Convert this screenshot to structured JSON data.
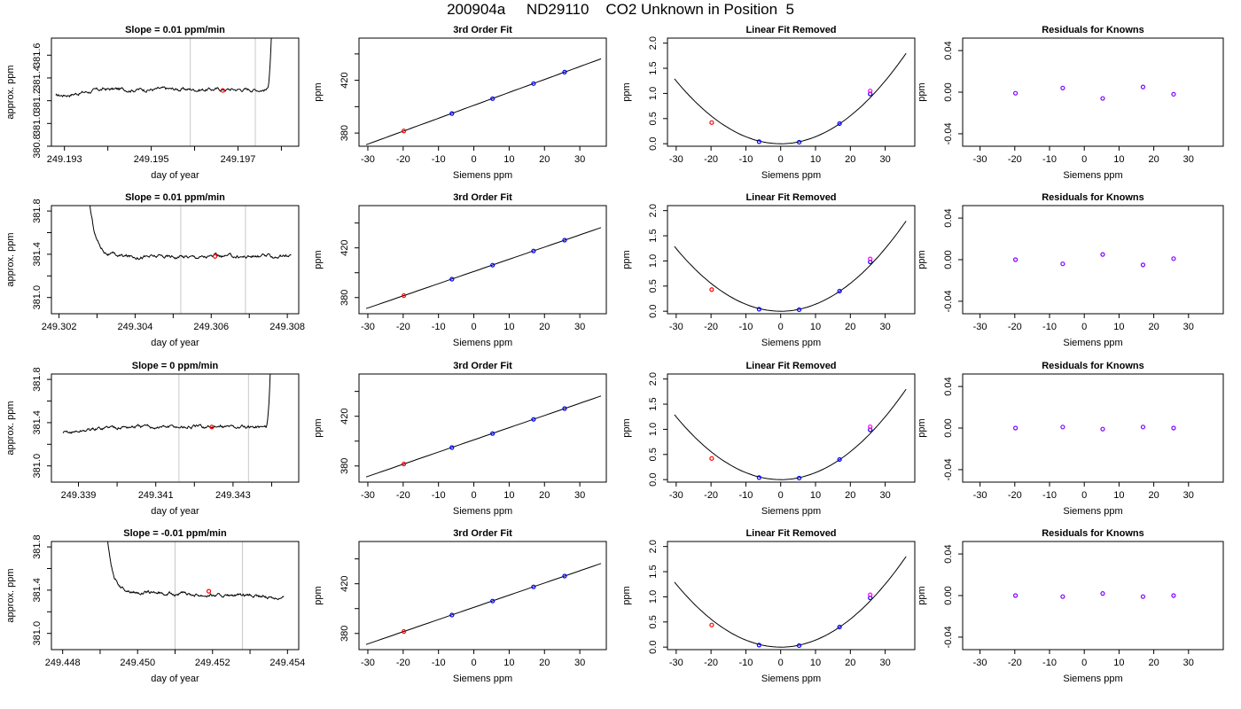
{
  "main_title": "200904a     ND29110    CO2 Unknown in Position  5",
  "chart_data": [
    {
      "id": "r1c1",
      "type": "line",
      "title": "Slope =  0.01  ppm/min",
      "xlabel": "day of year",
      "ylabel": "approx. ppm",
      "xlim": [
        249.1927,
        249.1984
      ],
      "ylim": [
        380.8,
        381.75
      ],
      "xticks": [
        249.193,
        249.194,
        249.195,
        249.196,
        249.197,
        249.198
      ],
      "xticklabels": [
        "249.193",
        "",
        "249.195",
        "",
        "249.197",
        ""
      ],
      "yticks": [
        380.8,
        381.0,
        381.2,
        381.4,
        381.6
      ],
      "yticklabels": [
        "380.8",
        "381.0",
        "381.2",
        "381.4",
        "381.6"
      ],
      "vlines": [
        249.1959,
        249.1974
      ],
      "trace_start": 249.1928,
      "trace_end": 249.1979,
      "base": 381.3,
      "initial": 381.24,
      "noise": 0.014,
      "rise": "end",
      "marker": [
        249.19665,
        381.29
      ]
    },
    {
      "id": "r1c2",
      "type": "scatter",
      "title": "3rd Order Fit",
      "xlabel": "Siemens ppm",
      "ylabel": "ppm",
      "xlim": [
        -32.5,
        37.5
      ],
      "ylim": [
        370,
        452
      ],
      "xticks": [
        -30,
        -20,
        -10,
        0,
        10,
        20,
        30
      ],
      "xticklabels": [
        "-30",
        "-20",
        "-10",
        "0",
        "10",
        "20",
        "30"
      ],
      "yticks": [
        380,
        400,
        420,
        440
      ],
      "yticklabels": [
        "380",
        "",
        "420",
        ""
      ],
      "fit": "cubic",
      "fit_range": [
        -30.5,
        36
      ],
      "points": [
        {
          "x": -19.8,
          "y": 381.6,
          "color": "#ff0000"
        },
        {
          "x": -6.2,
          "y": 394.8,
          "color": "#0000ff"
        },
        {
          "x": 5.3,
          "y": 406.1,
          "color": "#0000ff"
        },
        {
          "x": 16.9,
          "y": 417.5,
          "color": "#0000ff"
        },
        {
          "x": 25.7,
          "y": 426.2,
          "color": "#0000ff"
        }
      ]
    },
    {
      "id": "r1c3",
      "type": "scatter",
      "title": "Linear Fit Removed",
      "xlabel": "Siemens ppm",
      "ylabel": "ppm",
      "xlim": [
        -32.5,
        38.5
      ],
      "ylim": [
        -0.05,
        2.1
      ],
      "xticks": [
        -30,
        -20,
        -10,
        0,
        10,
        20,
        30
      ],
      "xticklabels": [
        "-30",
        "-20",
        "-10",
        "0",
        "10",
        "20",
        "30"
      ],
      "yticks": [
        0,
        0.5,
        1.0,
        1.5,
        2.0
      ],
      "yticklabels": [
        "0.0",
        "0.5",
        "1.0",
        "1.5",
        "2.0"
      ],
      "fit": "parabola",
      "fit_range": [
        -30.5,
        36
      ],
      "points": [
        {
          "x": -19.8,
          "y": 0.42,
          "color": "#ff0000"
        },
        {
          "x": -6.2,
          "y": 0.04,
          "color": "#0000ff"
        },
        {
          "x": 5.3,
          "y": 0.03,
          "color": "#0000ff"
        },
        {
          "x": 16.9,
          "y": 0.4,
          "color": "#0000ff"
        },
        {
          "x": 25.7,
          "y": 0.99,
          "color": "#0000ff"
        },
        {
          "x": 25.7,
          "y": 1.05,
          "color": "#ff00ff"
        }
      ]
    },
    {
      "id": "r1c4",
      "type": "scatter",
      "title": "Residuals for Knowns",
      "xlabel": "Siemens ppm",
      "ylabel": "ppm",
      "xlim": [
        -35,
        40
      ],
      "ylim": [
        -0.052,
        0.052
      ],
      "xticks": [
        -30,
        -20,
        -10,
        0,
        10,
        20,
        30
      ],
      "xticklabels": [
        "-30",
        "-20",
        "-10",
        "0",
        "10",
        "20",
        "30"
      ],
      "yticks": [
        -0.04,
        0,
        0.04
      ],
      "yticklabels": [
        "-0.04",
        "0.00",
        "0.04"
      ],
      "points": [
        {
          "x": -19.8,
          "y": -0.001,
          "color": "#8000ff"
        },
        {
          "x": -6.2,
          "y": 0.004,
          "color": "#8000ff"
        },
        {
          "x": 5.3,
          "y": -0.006,
          "color": "#8000ff"
        },
        {
          "x": 16.9,
          "y": 0.005,
          "color": "#8000ff"
        },
        {
          "x": 25.7,
          "y": -0.002,
          "color": "#8000ff"
        }
      ]
    },
    {
      "id": "r2c1",
      "type": "line",
      "title": "Slope =  0.01  ppm/min",
      "xlabel": "day of year",
      "ylabel": "approx. ppm",
      "xlim": [
        249.3018,
        249.3083
      ],
      "ylim": [
        380.85,
        381.85
      ],
      "xticks": [
        249.302,
        249.303,
        249.304,
        249.305,
        249.306,
        249.307,
        249.308
      ],
      "xticklabels": [
        "249.302",
        "",
        "249.304",
        "",
        "249.306",
        "",
        "249.308"
      ],
      "yticks": [
        381.0,
        381.2,
        381.4,
        381.6,
        381.8
      ],
      "yticklabels": [
        "381.0",
        "",
        "381.4",
        "",
        "381.8"
      ],
      "vlines": [
        249.3052,
        249.3069
      ],
      "trace_start": 249.3027,
      "trace_end": 249.3081,
      "base": 381.38,
      "noise": 0.014,
      "rise": "start",
      "marker": [
        249.3061,
        381.38
      ]
    },
    {
      "id": "r2c2",
      "type": "scatter",
      "title": "3rd Order Fit",
      "xlabel": "Siemens ppm",
      "ylabel": "ppm",
      "xlim": [
        -32.5,
        37.5
      ],
      "ylim": [
        367,
        454
      ],
      "xticks": [
        -30,
        -20,
        -10,
        0,
        10,
        20,
        30
      ],
      "xticklabels": [
        "-30",
        "-20",
        "-10",
        "0",
        "10",
        "20",
        "30"
      ],
      "yticks": [
        380,
        400,
        420,
        440
      ],
      "yticklabels": [
        "380",
        "",
        "420",
        ""
      ],
      "fit": "cubic",
      "fit_range": [
        -30.5,
        36
      ],
      "points": [
        {
          "x": -19.8,
          "y": 381.6,
          "color": "#ff0000"
        },
        {
          "x": -6.2,
          "y": 394.8,
          "color": "#0000ff"
        },
        {
          "x": 5.3,
          "y": 406.1,
          "color": "#0000ff"
        },
        {
          "x": 16.9,
          "y": 417.5,
          "color": "#0000ff"
        },
        {
          "x": 25.7,
          "y": 426.2,
          "color": "#0000ff"
        }
      ]
    },
    {
      "id": "r2c3",
      "type": "scatter",
      "title": "Linear Fit Removed",
      "xlabel": "Siemens ppm",
      "ylabel": "ppm",
      "xlim": [
        -32.5,
        38.5
      ],
      "ylim": [
        -0.05,
        2.1
      ],
      "xticks": [
        -30,
        -20,
        -10,
        0,
        10,
        20,
        30
      ],
      "xticklabels": [
        "-30",
        "-20",
        "-10",
        "0",
        "10",
        "20",
        "30"
      ],
      "yticks": [
        0,
        0.5,
        1.0,
        1.5,
        2.0
      ],
      "yticklabels": [
        "0.0",
        "0.5",
        "1.0",
        "1.5",
        "2.0"
      ],
      "fit": "parabola",
      "fit_range": [
        -30.5,
        36
      ],
      "points": [
        {
          "x": -19.8,
          "y": 0.43,
          "color": "#ff0000"
        },
        {
          "x": -6.2,
          "y": 0.04,
          "color": "#0000ff"
        },
        {
          "x": 5.3,
          "y": 0.03,
          "color": "#0000ff"
        },
        {
          "x": 16.9,
          "y": 0.4,
          "color": "#0000ff"
        },
        {
          "x": 25.7,
          "y": 0.98,
          "color": "#0000ff"
        },
        {
          "x": 25.7,
          "y": 1.04,
          "color": "#ff00ff"
        }
      ]
    },
    {
      "id": "r2c4",
      "type": "scatter",
      "title": "Residuals for Knowns",
      "xlabel": "Siemens ppm",
      "ylabel": "ppm",
      "xlim": [
        -35,
        40
      ],
      "ylim": [
        -0.052,
        0.052
      ],
      "xticks": [
        -30,
        -20,
        -10,
        0,
        10,
        20,
        30
      ],
      "xticklabels": [
        "-30",
        "-20",
        "-10",
        "0",
        "10",
        "20",
        "30"
      ],
      "yticks": [
        -0.04,
        0,
        0.04
      ],
      "yticklabels": [
        "-0.04",
        "0.00",
        "0.04"
      ],
      "points": [
        {
          "x": -19.8,
          "y": 0.0,
          "color": "#8000ff"
        },
        {
          "x": -6.2,
          "y": -0.004,
          "color": "#8000ff"
        },
        {
          "x": 5.3,
          "y": 0.005,
          "color": "#8000ff"
        },
        {
          "x": 16.9,
          "y": -0.005,
          "color": "#8000ff"
        },
        {
          "x": 25.7,
          "y": 0.001,
          "color": "#8000ff"
        }
      ]
    },
    {
      "id": "r3c1",
      "type": "line",
      "title": "Slope =  0  ppm/min",
      "xlabel": "day of year",
      "ylabel": "approx. ppm",
      "xlim": [
        249.3383,
        249.3447
      ],
      "ylim": [
        380.85,
        381.85
      ],
      "xticks": [
        249.339,
        249.34,
        249.341,
        249.342,
        249.343,
        249.344
      ],
      "xticklabels": [
        "249.339",
        "",
        "249.341",
        "",
        "249.343",
        ""
      ],
      "yticks": [
        381.0,
        381.2,
        381.4,
        381.6,
        381.8
      ],
      "yticklabels": [
        "381.0",
        "",
        "381.4",
        "",
        "381.8"
      ],
      "vlines": [
        249.3416,
        249.3434
      ],
      "trace_start": 249.3386,
      "trace_end": 249.3441,
      "base": 381.36,
      "initial": 381.3,
      "noise": 0.014,
      "rise": "end",
      "marker": [
        249.34245,
        381.36
      ]
    },
    {
      "id": "r3c2",
      "type": "scatter",
      "title": "3rd Order Fit",
      "xlabel": "Siemens ppm",
      "ylabel": "ppm",
      "xlim": [
        -32.5,
        37.5
      ],
      "ylim": [
        367,
        454
      ],
      "xticks": [
        -30,
        -20,
        -10,
        0,
        10,
        20,
        30
      ],
      "xticklabels": [
        "-30",
        "-20",
        "-10",
        "0",
        "10",
        "20",
        "30"
      ],
      "yticks": [
        380,
        400,
        420,
        440
      ],
      "yticklabels": [
        "380",
        "",
        "420",
        ""
      ],
      "fit": "cubic",
      "fit_range": [
        -30.5,
        36
      ],
      "points": [
        {
          "x": -19.8,
          "y": 381.6,
          "color": "#ff0000"
        },
        {
          "x": -6.2,
          "y": 394.8,
          "color": "#0000ff"
        },
        {
          "x": 5.3,
          "y": 406.1,
          "color": "#0000ff"
        },
        {
          "x": 16.9,
          "y": 417.5,
          "color": "#0000ff"
        },
        {
          "x": 25.7,
          "y": 426.2,
          "color": "#0000ff"
        }
      ]
    },
    {
      "id": "r3c3",
      "type": "scatter",
      "title": "Linear Fit Removed",
      "xlabel": "Siemens ppm",
      "ylabel": "ppm",
      "xlim": [
        -32.5,
        38.5
      ],
      "ylim": [
        -0.05,
        2.1
      ],
      "xticks": [
        -30,
        -20,
        -10,
        0,
        10,
        20,
        30
      ],
      "xticklabels": [
        "-30",
        "-20",
        "-10",
        "0",
        "10",
        "20",
        "30"
      ],
      "yticks": [
        0,
        0.5,
        1.0,
        1.5,
        2.0
      ],
      "yticklabels": [
        "0.0",
        "0.5",
        "1.0",
        "1.5",
        "2.0"
      ],
      "fit": "parabola",
      "fit_range": [
        -30.5,
        36
      ],
      "points": [
        {
          "x": -19.8,
          "y": 0.42,
          "color": "#ff0000"
        },
        {
          "x": -6.2,
          "y": 0.04,
          "color": "#0000ff"
        },
        {
          "x": 5.3,
          "y": 0.03,
          "color": "#0000ff"
        },
        {
          "x": 16.9,
          "y": 0.4,
          "color": "#0000ff"
        },
        {
          "x": 25.7,
          "y": 0.99,
          "color": "#0000ff"
        },
        {
          "x": 25.7,
          "y": 1.05,
          "color": "#ff00ff"
        }
      ]
    },
    {
      "id": "r3c4",
      "type": "scatter",
      "title": "Residuals for Knowns",
      "xlabel": "Siemens ppm",
      "ylabel": "ppm",
      "xlim": [
        -35,
        40
      ],
      "ylim": [
        -0.052,
        0.052
      ],
      "xticks": [
        -30,
        -20,
        -10,
        0,
        10,
        20,
        30
      ],
      "xticklabels": [
        "-30",
        "-20",
        "-10",
        "0",
        "10",
        "20",
        "30"
      ],
      "yticks": [
        -0.04,
        0,
        0.04
      ],
      "yticklabels": [
        "-0.04",
        "0.00",
        "0.04"
      ],
      "points": [
        {
          "x": -19.8,
          "y": 0.0,
          "color": "#8000ff"
        },
        {
          "x": -6.2,
          "y": 0.001,
          "color": "#8000ff"
        },
        {
          "x": 5.3,
          "y": -0.001,
          "color": "#8000ff"
        },
        {
          "x": 16.9,
          "y": 0.001,
          "color": "#8000ff"
        },
        {
          "x": 25.7,
          "y": 0.0,
          "color": "#8000ff"
        }
      ]
    },
    {
      "id": "r4c1",
      "type": "line",
      "title": "Slope =  -0.01  ppm/min",
      "xlabel": "day of year",
      "ylabel": "approx. ppm",
      "xlim": [
        249.4477,
        249.4543
      ],
      "ylim": [
        380.85,
        381.85
      ],
      "xticks": [
        249.448,
        249.449,
        249.45,
        249.451,
        249.452,
        249.453,
        249.454
      ],
      "xticklabels": [
        "249.448",
        "",
        "249.450",
        "",
        "249.452",
        "",
        "249.454"
      ],
      "yticks": [
        381.0,
        381.2,
        381.4,
        381.6,
        381.8
      ],
      "yticklabels": [
        "381.0",
        "",
        "381.4",
        "",
        "381.8"
      ],
      "vlines": [
        249.451,
        249.4528
      ],
      "trace_start": 249.4491,
      "trace_end": 249.4539,
      "base": 381.39,
      "noise": 0.012,
      "rise": "start",
      "trend": -0.06,
      "marker": [
        249.4519,
        381.39
      ]
    },
    {
      "id": "r4c2",
      "type": "scatter",
      "title": "3rd Order Fit",
      "xlabel": "Siemens ppm",
      "ylabel": "ppm",
      "xlim": [
        -32.5,
        37.5
      ],
      "ylim": [
        367,
        454
      ],
      "xticks": [
        -30,
        -20,
        -10,
        0,
        10,
        20,
        30
      ],
      "xticklabels": [
        "-30",
        "-20",
        "-10",
        "0",
        "10",
        "20",
        "30"
      ],
      "yticks": [
        380,
        400,
        420,
        440
      ],
      "yticklabels": [
        "380",
        "",
        "420",
        ""
      ],
      "fit": "cubic",
      "fit_range": [
        -30.5,
        36
      ],
      "points": [
        {
          "x": -19.8,
          "y": 381.6,
          "color": "#ff0000"
        },
        {
          "x": -6.2,
          "y": 394.8,
          "color": "#0000ff"
        },
        {
          "x": 5.3,
          "y": 406.1,
          "color": "#0000ff"
        },
        {
          "x": 16.9,
          "y": 417.5,
          "color": "#0000ff"
        },
        {
          "x": 25.7,
          "y": 426.2,
          "color": "#0000ff"
        }
      ]
    },
    {
      "id": "r4c3",
      "type": "scatter",
      "title": "Linear Fit Removed",
      "xlabel": "Siemens ppm",
      "ylabel": "ppm",
      "xlim": [
        -32.5,
        38.5
      ],
      "ylim": [
        -0.05,
        2.1
      ],
      "xticks": [
        -30,
        -20,
        -10,
        0,
        10,
        20,
        30
      ],
      "xticklabels": [
        "-30",
        "-20",
        "-10",
        "0",
        "10",
        "20",
        "30"
      ],
      "yticks": [
        0,
        0.5,
        1.0,
        1.5,
        2.0
      ],
      "yticklabels": [
        "0.0",
        "0.5",
        "1.0",
        "1.5",
        "2.0"
      ],
      "fit": "parabola",
      "fit_range": [
        -30.5,
        36
      ],
      "points": [
        {
          "x": -19.8,
          "y": 0.44,
          "color": "#ff0000"
        },
        {
          "x": -6.2,
          "y": 0.04,
          "color": "#0000ff"
        },
        {
          "x": 5.3,
          "y": 0.03,
          "color": "#0000ff"
        },
        {
          "x": 16.9,
          "y": 0.4,
          "color": "#0000ff"
        },
        {
          "x": 25.7,
          "y": 0.98,
          "color": "#0000ff"
        },
        {
          "x": 25.7,
          "y": 1.04,
          "color": "#ff00ff"
        }
      ]
    },
    {
      "id": "r4c4",
      "type": "scatter",
      "title": "Residuals for Knowns",
      "xlabel": "Siemens ppm",
      "ylabel": "ppm",
      "xlim": [
        -35,
        40
      ],
      "ylim": [
        -0.052,
        0.052
      ],
      "xticks": [
        -30,
        -20,
        -10,
        0,
        10,
        20,
        30
      ],
      "xticklabels": [
        "-30",
        "-20",
        "-10",
        "0",
        "10",
        "20",
        "30"
      ],
      "yticks": [
        -0.04,
        0,
        0.04
      ],
      "yticklabels": [
        "-0.04",
        "0.00",
        "0.04"
      ],
      "points": [
        {
          "x": -19.8,
          "y": 0.0,
          "color": "#8000ff"
        },
        {
          "x": -6.2,
          "y": -0.001,
          "color": "#8000ff"
        },
        {
          "x": 5.3,
          "y": 0.002,
          "color": "#8000ff"
        },
        {
          "x": 16.9,
          "y": -0.001,
          "color": "#8000ff"
        },
        {
          "x": 25.7,
          "y": 0.0,
          "color": "#8000ff"
        }
      ]
    }
  ]
}
